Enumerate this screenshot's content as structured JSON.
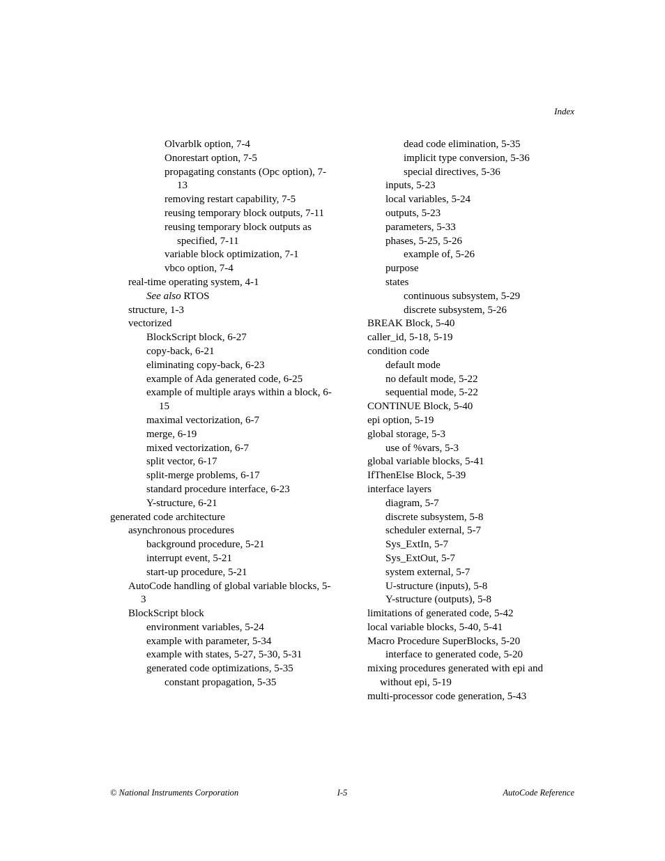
{
  "header": {
    "label": "Index"
  },
  "footer": {
    "left": "© National Instruments Corporation",
    "center": "I-5",
    "right": "AutoCode Reference"
  },
  "left_column": [
    {
      "level": 3,
      "text": "Olvarblk option, 7-4"
    },
    {
      "level": 3,
      "text": "Onorestart option, 7-5"
    },
    {
      "level": 3,
      "text": "propagating constants (Opc option), 7-13"
    },
    {
      "level": 3,
      "text": "removing restart capability, 7-5"
    },
    {
      "level": 3,
      "text": "reusing temporary block outputs, 7-11"
    },
    {
      "level": 3,
      "text": "reusing temporary block outputs as specified, 7-11"
    },
    {
      "level": 3,
      "text": "variable block optimization, 7-1"
    },
    {
      "level": 3,
      "text": "vbco option, 7-4"
    },
    {
      "level": 1,
      "text": "real-time operating system, 4-1"
    },
    {
      "level": 2,
      "text_html": "<span class=\"seealso\">See also</span> RTOS"
    },
    {
      "level": 1,
      "text": "structure, 1-3"
    },
    {
      "level": 1,
      "text": "vectorized"
    },
    {
      "level": 2,
      "text": "BlockScript block, 6-27"
    },
    {
      "level": 2,
      "text": "copy-back, 6-21"
    },
    {
      "level": 2,
      "text": "eliminating copy-back, 6-23"
    },
    {
      "level": 2,
      "text": "example of Ada generated code, 6-25"
    },
    {
      "level": 2,
      "text": "example of multiple arays within a block, 6-15"
    },
    {
      "level": 2,
      "text": "maximal vectorization, 6-7"
    },
    {
      "level": 2,
      "text": "merge, 6-19"
    },
    {
      "level": 2,
      "text": "mixed vectorization, 6-7"
    },
    {
      "level": 2,
      "text": "split vector, 6-17"
    },
    {
      "level": 2,
      "text": "split-merge problems, 6-17"
    },
    {
      "level": 2,
      "text": "standard procedure interface, 6-23"
    },
    {
      "level": 2,
      "text": "Y-structure, 6-21"
    },
    {
      "level": 0,
      "text": "generated code architecture"
    },
    {
      "level": 1,
      "text": "asynchronous procedures"
    },
    {
      "level": 2,
      "text": "background procedure, 5-21"
    },
    {
      "level": 2,
      "text": "interrupt event, 5-21"
    },
    {
      "level": 2,
      "text": "start-up procedure, 5-21"
    },
    {
      "level": 1,
      "text": "AutoCode handling of global variable blocks, 5-3"
    },
    {
      "level": 1,
      "text": "BlockScript block"
    },
    {
      "level": 2,
      "text": "environment variables, 5-24"
    },
    {
      "level": 2,
      "text": "example with parameter, 5-34"
    },
    {
      "level": 2,
      "text": "example with states, 5-27, 5-30, 5-31"
    },
    {
      "level": 2,
      "text": "generated code optimizations, 5-35"
    },
    {
      "level": 3,
      "text": "constant propagation, 5-35"
    }
  ],
  "right_column": [
    {
      "level": 3,
      "text": "dead code elimination, 5-35"
    },
    {
      "level": 3,
      "text": "implicit type conversion, 5-36"
    },
    {
      "level": 3,
      "text": "special directives, 5-36"
    },
    {
      "level": 2,
      "text": "inputs, 5-23"
    },
    {
      "level": 2,
      "text": "local variables, 5-24"
    },
    {
      "level": 2,
      "text": "outputs, 5-23"
    },
    {
      "level": 2,
      "text": "parameters, 5-33"
    },
    {
      "level": 2,
      "text": "phases, 5-25, 5-26"
    },
    {
      "level": 3,
      "text": "example of, 5-26"
    },
    {
      "level": 2,
      "text": "purpose"
    },
    {
      "level": 2,
      "text": "states"
    },
    {
      "level": 3,
      "text": "continuous subsystem, 5-29"
    },
    {
      "level": 3,
      "text": "discrete subsystem, 5-26"
    },
    {
      "level": 1,
      "text": "BREAK Block, 5-40"
    },
    {
      "level": 1,
      "text": "caller_id, 5-18, 5-19"
    },
    {
      "level": 1,
      "text": "condition code"
    },
    {
      "level": 2,
      "text": "default mode"
    },
    {
      "level": 2,
      "text": "no default mode, 5-22"
    },
    {
      "level": 2,
      "text": "sequential mode, 5-22"
    },
    {
      "level": 1,
      "text": "CONTINUE Block, 5-40"
    },
    {
      "level": 1,
      "text": "epi option, 5-19"
    },
    {
      "level": 1,
      "text": "global storage, 5-3"
    },
    {
      "level": 2,
      "text": "use of %vars, 5-3"
    },
    {
      "level": 1,
      "text": "global variable blocks, 5-41"
    },
    {
      "level": 1,
      "text": "IfThenElse Block, 5-39"
    },
    {
      "level": 1,
      "text": "interface layers"
    },
    {
      "level": 2,
      "text": "diagram, 5-7"
    },
    {
      "level": 2,
      "text": "discrete subsystem, 5-8"
    },
    {
      "level": 2,
      "text": "scheduler external, 5-7"
    },
    {
      "level": 2,
      "text": "Sys_ExtIn, 5-7"
    },
    {
      "level": 2,
      "text": "Sys_ExtOut, 5-7"
    },
    {
      "level": 2,
      "text": "system external, 5-7"
    },
    {
      "level": 2,
      "text": "U-structure (inputs), 5-8"
    },
    {
      "level": 2,
      "text": "Y-structure (outputs), 5-8"
    },
    {
      "level": 1,
      "text": "limitations of generated code, 5-42"
    },
    {
      "level": 1,
      "text": "local variable blocks, 5-40, 5-41"
    },
    {
      "level": 1,
      "text": "Macro Procedure SuperBlocks, 5-20"
    },
    {
      "level": 2,
      "text": "interface to generated code, 5-20"
    },
    {
      "level": 1,
      "text": "mixing procedures generated with epi and without epi, 5-19"
    },
    {
      "level": 1,
      "text": "multi-processor code generation, 5-43"
    }
  ]
}
